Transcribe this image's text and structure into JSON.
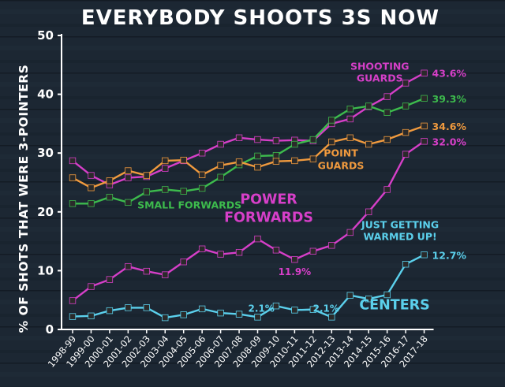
{
  "chart_data": {
    "type": "line",
    "title": "EVERYBODY SHOOTS 3S NOW",
    "ylabel": "% OF SHOTS THAT WERE 3-POINTERS",
    "xlabel": "",
    "ylim": [
      0,
      50
    ],
    "yticks": [
      0,
      10,
      20,
      30,
      40,
      50
    ],
    "grid": false,
    "x": [
      "1998-99",
      "1999-00",
      "2000-01",
      "2001-02",
      "2002-03",
      "2003-04",
      "2004-05",
      "2005-06",
      "2006-07",
      "2007-08",
      "2008-09",
      "2009-10",
      "2010-11",
      "2011-12",
      "2012-13",
      "2013-14",
      "2014-15",
      "2015-16",
      "2016-17",
      "2017-18"
    ],
    "series": [
      {
        "name": "SHOOTING GUARDS",
        "name_lines": [
          "SHOOTING",
          "GUARDS"
        ],
        "color": "#d63fc8",
        "end_label": "43.6%",
        "values": [
          28.7,
          26.2,
          24.6,
          25.8,
          26.0,
          27.4,
          28.7,
          30.0,
          31.5,
          32.6,
          32.3,
          32.1,
          32.2,
          32.1,
          35.0,
          35.8,
          37.9,
          39.6,
          41.9,
          43.6
        ]
      },
      {
        "name": "SMALL FORWARDS",
        "name_lines": [
          "SMALL FORWARDS"
        ],
        "color": "#3dbb4d",
        "end_label": "39.3%",
        "values": [
          21.4,
          21.4,
          22.5,
          21.6,
          23.4,
          23.8,
          23.5,
          24.0,
          25.9,
          28.0,
          29.5,
          29.6,
          31.5,
          32.3,
          35.6,
          37.5,
          38.0,
          36.9,
          38.0,
          39.3
        ]
      },
      {
        "name": "POINT GUARDS",
        "name_lines": [
          "POINT",
          "GUARDS"
        ],
        "color": "#f09a3e",
        "end_label": "34.6%",
        "values": [
          25.8,
          24.1,
          25.3,
          27.0,
          26.2,
          28.7,
          28.8,
          26.3,
          27.9,
          28.5,
          27.6,
          28.6,
          28.7,
          29.0,
          31.9,
          32.6,
          31.5,
          32.3,
          33.5,
          34.6
        ]
      },
      {
        "name": "POWER FORWARDS",
        "name_lines": [
          "POWER",
          "FORWARDS"
        ],
        "color": "#d63fc8",
        "end_label": "32.0%",
        "values": [
          4.9,
          7.3,
          8.5,
          10.7,
          9.9,
          9.3,
          11.5,
          13.7,
          12.8,
          13.1,
          15.4,
          13.5,
          11.9,
          13.3,
          14.3,
          16.5,
          20.0,
          23.8,
          29.8,
          32.0
        ]
      },
      {
        "name": "CENTERS",
        "name_lines": [
          "CENTERS"
        ],
        "color": "#5bd0ec",
        "end_label": "12.7%",
        "values": [
          2.2,
          2.3,
          3.2,
          3.7,
          3.7,
          2.0,
          2.5,
          3.5,
          2.8,
          2.6,
          2.1,
          4.0,
          3.3,
          3.4,
          2.1,
          5.8,
          5.2,
          5.9,
          11.1,
          12.7
        ]
      }
    ],
    "annotations": [
      {
        "text": "11.9%",
        "color": "#d63fc8"
      },
      {
        "text": "2.1%",
        "color": "#5bd0ec"
      },
      {
        "text": "2.1%",
        "color": "#5bd0ec"
      },
      {
        "text_lines": [
          "JUST GETTING",
          "WARMED UP!"
        ],
        "color": "#5bd0ec"
      }
    ]
  }
}
